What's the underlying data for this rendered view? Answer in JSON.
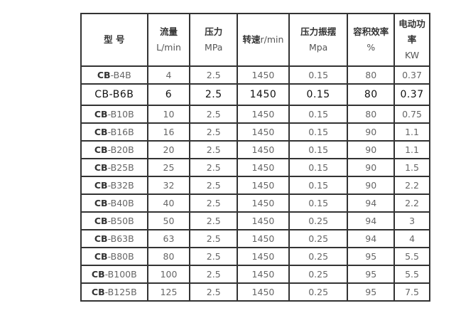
{
  "headers": [
    {
      "title": "型 号",
      "unit": ""
    },
    {
      "title": "流量",
      "unit": "L/min"
    },
    {
      "title": "压力",
      "unit": "MPa"
    },
    {
      "title": "转速",
      "unit": "r/min"
    },
    {
      "title": "压力振摆",
      "unit": "Mpa"
    },
    {
      "title": "容积效率",
      "unit": "%"
    },
    {
      "title": "电动功率",
      "unit": "KW"
    }
  ],
  "rows": [
    {
      "prefix": "CB",
      "model": "-B4B",
      "cells": [
        "4",
        "2.5",
        "1450",
        "0.15",
        "80",
        "0.37"
      ]
    },
    {
      "prefix": "CB",
      "model": "-B6B",
      "cells": [
        "6",
        "2.5",
        "1450",
        "0.15",
        "80",
        "0.37"
      ],
      "highlight": true
    },
    {
      "prefix": "CB",
      "model": "-B10B",
      "cells": [
        "10",
        "2.5",
        "1450",
        "0.15",
        "80",
        "0.75"
      ]
    },
    {
      "prefix": "CB",
      "model": "-B16B",
      "cells": [
        "16",
        "2.5",
        "1450",
        "0.15",
        "90",
        "1.1"
      ]
    },
    {
      "prefix": "CB",
      "model": "-B20B",
      "cells": [
        "20",
        "2.5",
        "1450",
        "0.15",
        "90",
        "1.1"
      ]
    },
    {
      "prefix": "CB",
      "model": "-B25B",
      "cells": [
        "25",
        "2.5",
        "1450",
        "0.15",
        "90",
        "1.5"
      ]
    },
    {
      "prefix": "CB",
      "model": "-B32B",
      "cells": [
        "32",
        "2.5",
        "1450",
        "0.15",
        "90",
        "2.2"
      ]
    },
    {
      "prefix": "CB",
      "model": "-B40B",
      "cells": [
        "40",
        "2.5",
        "1450",
        "0.15",
        "94",
        "2.2"
      ]
    },
    {
      "prefix": "CB",
      "model": "-B50B",
      "cells": [
        "50",
        "2.5",
        "1450",
        "0.25",
        "94",
        "3"
      ]
    },
    {
      "prefix": "CB",
      "model": "-B63B",
      "cells": [
        "63",
        "2.5",
        "1450",
        "0.25",
        "94",
        "4"
      ]
    },
    {
      "prefix": "CB",
      "model": "-B80B",
      "cells": [
        "80",
        "2.5",
        "1450",
        "0.25",
        "95",
        "5.5"
      ]
    },
    {
      "prefix": "CB",
      "model": "-B100B",
      "cells": [
        "100",
        "2.5",
        "1450",
        "0.25",
        "95",
        "5.5"
      ]
    },
    {
      "prefix": "CB",
      "model": "-B125B",
      "cells": [
        "125",
        "2.5",
        "1450",
        "0.25",
        "95",
        "7.5"
      ]
    }
  ]
}
